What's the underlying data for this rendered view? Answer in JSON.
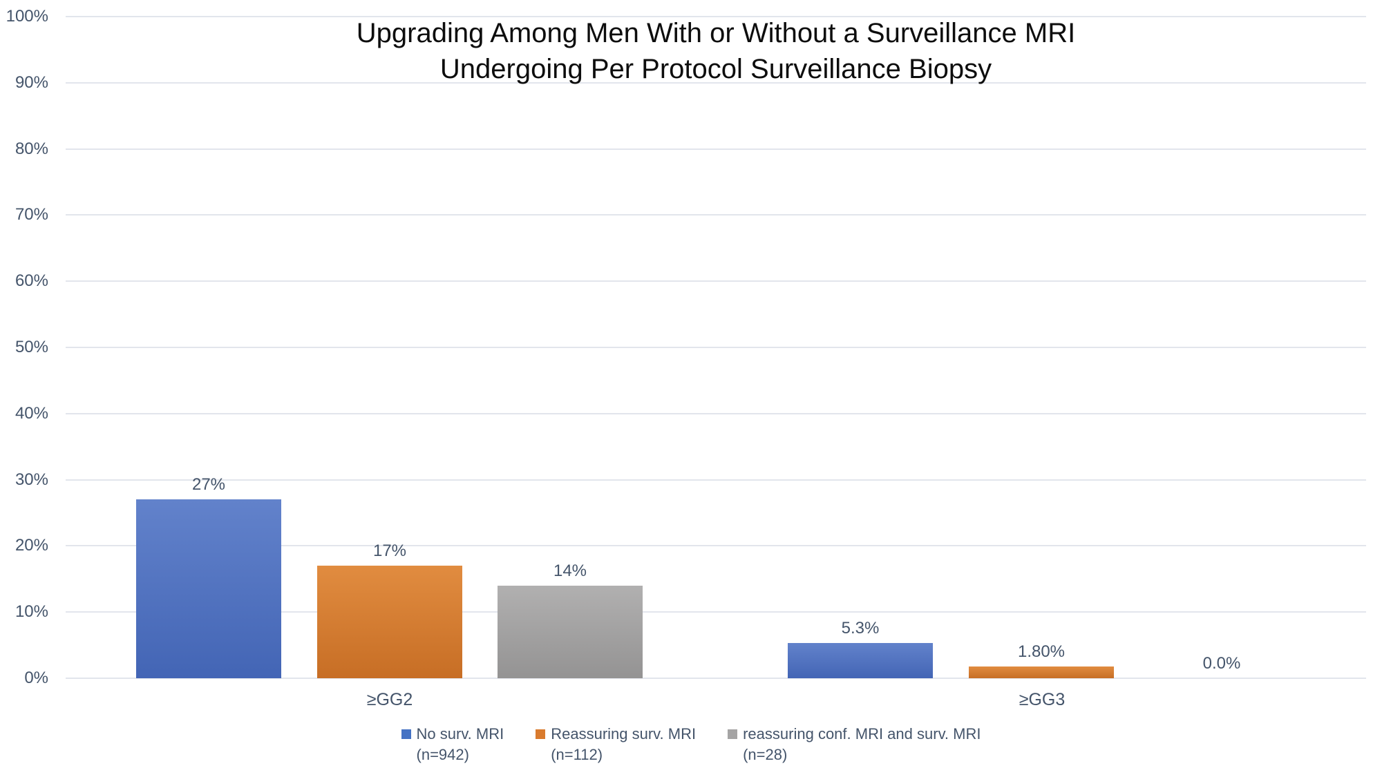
{
  "title": {
    "line1": "Upgrading Among Men With or Without a Surveillance MRI",
    "line2": "Undergoing Per Protocol Surveillance Biopsy"
  },
  "chart_data": {
    "type": "bar",
    "title": "Upgrading Among Men With or Without a Surveillance MRI Undergoing Per Protocol Surveillance Biopsy",
    "categories": [
      "≥GG2",
      "≥GG3"
    ],
    "series": [
      {
        "name": "No surv. MRI (n=942)",
        "values": [
          27,
          5.3
        ],
        "value_labels": [
          "27%",
          "5.3%"
        ],
        "color": "#4472C4",
        "gradient_top": "#6282CB",
        "gradient_bottom": "#4365B5"
      },
      {
        "name": "Reassuring surv. MRI (n=112)",
        "values": [
          17,
          1.8
        ],
        "value_labels": [
          "17%",
          "1.80%"
        ],
        "color": "#D97B2E",
        "gradient_top": "#E18C40",
        "gradient_bottom": "#C76E25"
      },
      {
        "name": "reassuring conf. MRI and surv. MRI (n=28)",
        "values": [
          14,
          0
        ],
        "value_labels": [
          "14%",
          "0.0%"
        ],
        "color": "#A5A4A4",
        "gradient_top": "#B1B0B0",
        "gradient_bottom": "#949393"
      }
    ],
    "ylim": [
      0,
      100
    ],
    "yticks": [
      "0%",
      "10%",
      "20%",
      "30%",
      "40%",
      "50%",
      "60%",
      "70%",
      "80%",
      "90%",
      "100%"
    ],
    "xlabel": "",
    "ylabel": "",
    "grid": true,
    "legend_position": "bottom"
  },
  "legend": {
    "items": [
      {
        "line1": "No surv. MRI",
        "line2": "(n=942)",
        "color": "#4472C4"
      },
      {
        "line1": "Reassuring surv. MRI",
        "line2": "(n=112)",
        "color": "#D97B2E"
      },
      {
        "line1": "reassuring conf. MRI and surv. MRI",
        "line2": "(n=28)",
        "color": "#A5A4A4"
      }
    ]
  }
}
